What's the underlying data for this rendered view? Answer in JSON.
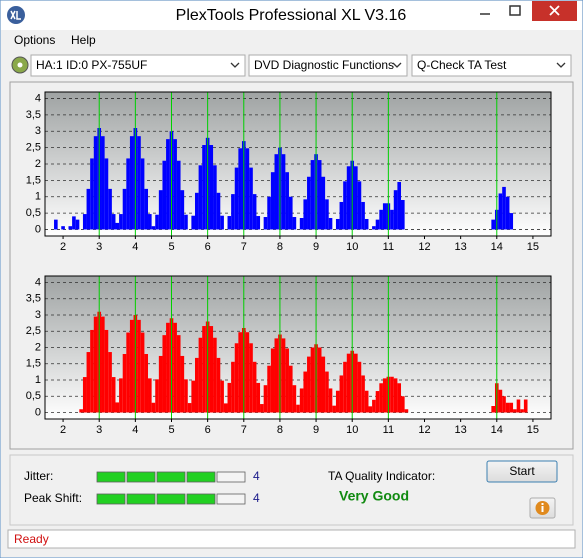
{
  "window": {
    "title": "PlexTools Professional XL V3.16"
  },
  "menu": [
    "Options",
    "Help"
  ],
  "toolbar": {
    "drive": "HA:1 ID:0  PX-755UF",
    "function": "DVD Diagnostic Functions",
    "test": "Q-Check TA Test"
  },
  "chart_data": [
    {
      "type": "bar",
      "color": "#0000ff",
      "x": [
        1.8,
        1.9,
        2,
        2.1,
        2.2,
        2.3,
        2.4,
        2.5,
        2.6,
        2.7,
        2.8,
        2.9,
        3,
        3.1,
        3.2,
        3.3,
        3.4,
        3.5,
        3.6,
        3.7,
        3.8,
        3.9,
        4,
        4.1,
        4.2,
        4.3,
        4.4,
        4.5,
        4.6,
        4.7,
        4.8,
        4.9,
        5,
        5.1,
        5.2,
        5.3,
        5.4,
        5.5,
        5.6,
        5.7,
        5.8,
        5.9,
        6,
        6.1,
        6.2,
        6.3,
        6.4,
        6.5,
        6.6,
        6.7,
        6.8,
        6.9,
        7,
        7.1,
        7.2,
        7.3,
        7.4,
        7.5,
        7.6,
        7.7,
        7.8,
        7.9,
        8,
        8.1,
        8.2,
        8.3,
        8.4,
        8.5,
        8.6,
        8.7,
        8.8,
        8.9,
        9,
        9.1,
        9.2,
        9.3,
        9.4,
        9.5,
        9.6,
        9.7,
        9.8,
        9.9,
        10,
        10.1,
        10.2,
        10.3,
        10.4,
        10.5,
        10.6,
        10.7,
        10.8,
        10.9,
        11,
        11.1,
        11.2,
        11.3,
        11.4,
        11.5,
        11.6,
        11.7,
        11.8,
        11.9,
        12,
        12.1,
        12.2,
        12.3,
        12.4,
        12.5,
        12.6,
        12.7,
        12.8,
        12.9,
        13,
        13.1,
        13.2,
        13.3,
        13.4,
        13.5,
        13.6,
        13.7,
        13.8,
        13.9,
        14,
        14.1,
        14.2,
        14.3,
        14.4,
        14.5,
        14.6,
        14.7,
        14.8,
        14.9
      ],
      "values": [
        0.3,
        0,
        0.1,
        0,
        0.1,
        0.4,
        0.3,
        0,
        0.47,
        1.24,
        2.17,
        2.85,
        3.1,
        2.85,
        2.17,
        1.24,
        0.47,
        0.2,
        0.47,
        1.24,
        2.17,
        2.85,
        3.1,
        2.85,
        2.17,
        1.24,
        0.47,
        0.1,
        0.45,
        1.2,
        2.1,
        2.76,
        3,
        2.76,
        2.1,
        1.2,
        0.45,
        0,
        0.42,
        1.12,
        1.96,
        2.58,
        2.8,
        2.58,
        1.96,
        1.12,
        0.42,
        0,
        0.41,
        1.08,
        1.89,
        2.48,
        2.7,
        2.48,
        1.89,
        1.08,
        0.41,
        0,
        0.38,
        1,
        1.75,
        2.3,
        2.5,
        2.3,
        1.75,
        1,
        0.38,
        0,
        0.35,
        0.92,
        1.61,
        2.12,
        2.3,
        2.12,
        1.61,
        0.92,
        0.35,
        0,
        0.32,
        0.84,
        1.47,
        1.93,
        2.1,
        1.93,
        1.47,
        0.84,
        0.32,
        0,
        0.1,
        0.3,
        0.6,
        0.8,
        0.8,
        0.6,
        1.2,
        1.45,
        0.9,
        0,
        0,
        0,
        0,
        0,
        0,
        0,
        0,
        0,
        0,
        0,
        0,
        0,
        0,
        0,
        0,
        0,
        0,
        0,
        0,
        0,
        0,
        0,
        0,
        0.3,
        0.6,
        1.1,
        1.3,
        1,
        0.5,
        0,
        0,
        0,
        0,
        0
      ],
      "xlim": [
        1.5,
        15.5
      ],
      "xticks": [
        2,
        3,
        4,
        5,
        6,
        7,
        8,
        9,
        10,
        11,
        12,
        13,
        14,
        15
      ],
      "ylim": [
        -0.2,
        4.2
      ],
      "yticks": [
        0,
        {
          "value": 0.5,
          "label": "0,5"
        },
        1,
        {
          "value": 1.5,
          "label": "1,5"
        },
        2,
        {
          "value": 2.5,
          "label": "2,5"
        },
        3,
        {
          "value": 3.5,
          "label": "3,5"
        },
        4
      ],
      "grid": true,
      "markers": [
        3,
        4,
        5,
        6,
        7,
        8,
        9,
        10,
        11,
        14
      ],
      "marker_color": "#00d000"
    },
    {
      "type": "bar",
      "color": "#ff0000",
      "x": [
        1.8,
        1.9,
        2,
        2.1,
        2.2,
        2.3,
        2.4,
        2.5,
        2.6,
        2.7,
        2.8,
        2.9,
        3,
        3.1,
        3.2,
        3.3,
        3.4,
        3.5,
        3.6,
        3.7,
        3.8,
        3.9,
        4,
        4.1,
        4.2,
        4.3,
        4.4,
        4.5,
        4.6,
        4.7,
        4.8,
        4.9,
        5,
        5.1,
        5.2,
        5.3,
        5.4,
        5.5,
        5.6,
        5.7,
        5.8,
        5.9,
        6,
        6.1,
        6.2,
        6.3,
        6.4,
        6.5,
        6.6,
        6.7,
        6.8,
        6.9,
        7,
        7.1,
        7.2,
        7.3,
        7.4,
        7.5,
        7.6,
        7.7,
        7.8,
        7.9,
        8,
        8.1,
        8.2,
        8.3,
        8.4,
        8.5,
        8.6,
        8.7,
        8.8,
        8.9,
        9,
        9.1,
        9.2,
        9.3,
        9.4,
        9.5,
        9.6,
        9.7,
        9.8,
        9.9,
        10,
        10.1,
        10.2,
        10.3,
        10.4,
        10.5,
        10.6,
        10.7,
        10.8,
        10.9,
        11,
        11.1,
        11.2,
        11.3,
        11.4,
        11.5,
        11.6,
        11.7,
        11.8,
        11.9,
        12,
        12.1,
        12.2,
        12.3,
        12.4,
        12.5,
        12.6,
        12.7,
        12.8,
        12.9,
        13,
        13.1,
        13.2,
        13.3,
        13.4,
        13.5,
        13.6,
        13.7,
        13.8,
        13.9,
        14,
        14.1,
        14.2,
        14.3,
        14.4,
        14.5,
        14.6,
        14.7,
        14.8,
        14.9
      ],
      "values": [
        0,
        0,
        0,
        0,
        0,
        0,
        0,
        0.1,
        1.09,
        1.86,
        2.54,
        2.95,
        3.1,
        2.95,
        2.54,
        1.86,
        1.09,
        0.31,
        1.05,
        1.8,
        2.46,
        2.85,
        3,
        2.85,
        2.46,
        1.8,
        1.05,
        0.3,
        1.02,
        1.74,
        2.38,
        2.76,
        2.9,
        2.76,
        2.38,
        1.74,
        1.02,
        0.29,
        0.98,
        1.68,
        2.3,
        2.66,
        2.8,
        2.66,
        2.3,
        1.68,
        0.98,
        0.28,
        0.91,
        1.56,
        2.13,
        2.47,
        2.6,
        2.47,
        2.13,
        1.56,
        0.91,
        0.26,
        0.84,
        1.44,
        1.97,
        2.28,
        2.4,
        2.28,
        1.97,
        1.44,
        0.84,
        0.24,
        0.74,
        1.26,
        1.72,
        2,
        2.1,
        2,
        1.72,
        1.26,
        0.74,
        0.21,
        0.67,
        1.14,
        1.56,
        1.81,
        1.9,
        1.81,
        1.56,
        1.14,
        0.67,
        0.19,
        0.39,
        0.66,
        0.9,
        1.05,
        1.1,
        1.1,
        1.05,
        0.9,
        0.5,
        0.1,
        0,
        0,
        0,
        0,
        0,
        0,
        0,
        0,
        0,
        0,
        0,
        0,
        0,
        0,
        0,
        0,
        0,
        0,
        0,
        0,
        0,
        0,
        0,
        0.2,
        0.9,
        0.7,
        0.5,
        0.3,
        0.3,
        0.1,
        0.4,
        0.1,
        0.4,
        0
      ],
      "xlim": [
        1.5,
        15.5
      ],
      "xticks": [
        2,
        3,
        4,
        5,
        6,
        7,
        8,
        9,
        10,
        11,
        12,
        13,
        14,
        15
      ],
      "ylim": [
        -0.2,
        4.2
      ],
      "yticks": [
        0,
        {
          "value": 0.5,
          "label": "0,5"
        },
        1,
        {
          "value": 1.5,
          "label": "1,5"
        },
        2,
        {
          "value": 2.5,
          "label": "2,5"
        },
        3,
        {
          "value": 3.5,
          "label": "3,5"
        },
        4
      ],
      "grid": true,
      "markers": [
        3,
        4,
        5,
        6,
        7,
        8,
        9,
        10,
        11,
        14
      ],
      "marker_color": "#00d000"
    }
  ],
  "results": {
    "jitter": {
      "label": "Jitter:",
      "value": 4
    },
    "peak_shift": {
      "label": "Peak Shift:",
      "value": 4
    },
    "ta_quality_label": "TA Quality Indicator:",
    "ta_quality": "Very Good"
  },
  "buttons": {
    "start": "Start"
  },
  "status": "Ready"
}
